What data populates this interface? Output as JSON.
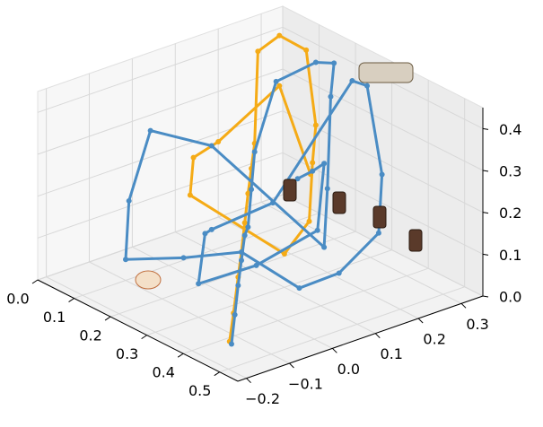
{
  "chart_data": {
    "type": "line3d",
    "xlim": [
      0,
      0.55
    ],
    "ylim": [
      -0.22,
      0.35
    ],
    "zlim": [
      0,
      0.45
    ],
    "xticks": [
      {
        "value": 0,
        "label": "0.0"
      },
      0.1,
      0.2,
      0.3,
      0.4,
      0.5
    ],
    "yticks": [
      {
        "value": -0.2,
        "label": "−0.2"
      },
      {
        "value": -0.1,
        "label": "−0.1"
      },
      {
        "value": 0,
        "label": "0.0"
      },
      0.1,
      0.2,
      0.3
    ],
    "zticks": [
      {
        "value": 0,
        "label": "0.0"
      },
      0.1,
      0.2,
      0.3,
      0.4
    ],
    "grid": true,
    "series": [
      {
        "color": "#f5ab16",
        "x": [
          0.48,
          0.42,
          0.35,
          0.3,
          0.25,
          0.2,
          0.15,
          0.1,
          0.05,
          0.05,
          0.1,
          0.15,
          0.2,
          0.25,
          0.3,
          0.1,
          0.05,
          0.0,
          0.05,
          0.1
        ],
        "y": [
          -0.18,
          -0.12,
          -0.05,
          0,
          0.05,
          0.1,
          0.15,
          0.2,
          0.25,
          0.3,
          0.32,
          0.3,
          0.25,
          0.2,
          0.1,
          0.05,
          0.1,
          0.2,
          0.3,
          0.33
        ],
        "z": [
          0.05,
          0.07,
          0.1,
          0.12,
          0.15,
          0.18,
          0.2,
          0.22,
          0.4,
          0.42,
          0.4,
          0.25,
          0.2,
          0.1,
          0.08,
          0.15,
          0.2,
          0.18,
          0.3,
          0.1
        ]
      },
      {
        "color": "#4a8cc4",
        "x": [
          0.45,
          0.4,
          0.35,
          0.3,
          0.25,
          0.2,
          0.15,
          0.1,
          0.1,
          0.15,
          0.2,
          0.25,
          0.3,
          0.35,
          0.1,
          0.05,
          0.05,
          0.1,
          0.2,
          0.3,
          0.4,
          0.45,
          0.5,
          0.45,
          0.35,
          0.25,
          0.15,
          0.1,
          0.2,
          0.3,
          0.4,
          0.45,
          0.35,
          0.2,
          0.1
        ],
        "y": [
          -0.15,
          -0.1,
          -0.05,
          0,
          0.05,
          0.1,
          0.15,
          0.2,
          0.25,
          0.3,
          0.3,
          0.25,
          0.2,
          0.15,
          0.1,
          0,
          -0.05,
          -0.1,
          -0.05,
          0,
          0.05,
          0.1,
          0.15,
          0.2,
          0.25,
          0.3,
          0.2,
          0.1,
          0,
          -0.1,
          -0.05,
          0.05,
          0.15,
          0.25,
          0.3
        ],
        "z": [
          0.02,
          0.05,
          0.08,
          0.1,
          0.12,
          0.1,
          0.15,
          0.2,
          0.35,
          0.4,
          0.42,
          0.38,
          0.2,
          0.1,
          0.25,
          0.3,
          0.15,
          0.05,
          0.08,
          0.12,
          0.06,
          0.1,
          0.2,
          0.3,
          0.45,
          0.4,
          0.1,
          0.05,
          0.12,
          0.08,
          0.15,
          0.22,
          0.3,
          0.18,
          0.1
        ]
      }
    ]
  }
}
